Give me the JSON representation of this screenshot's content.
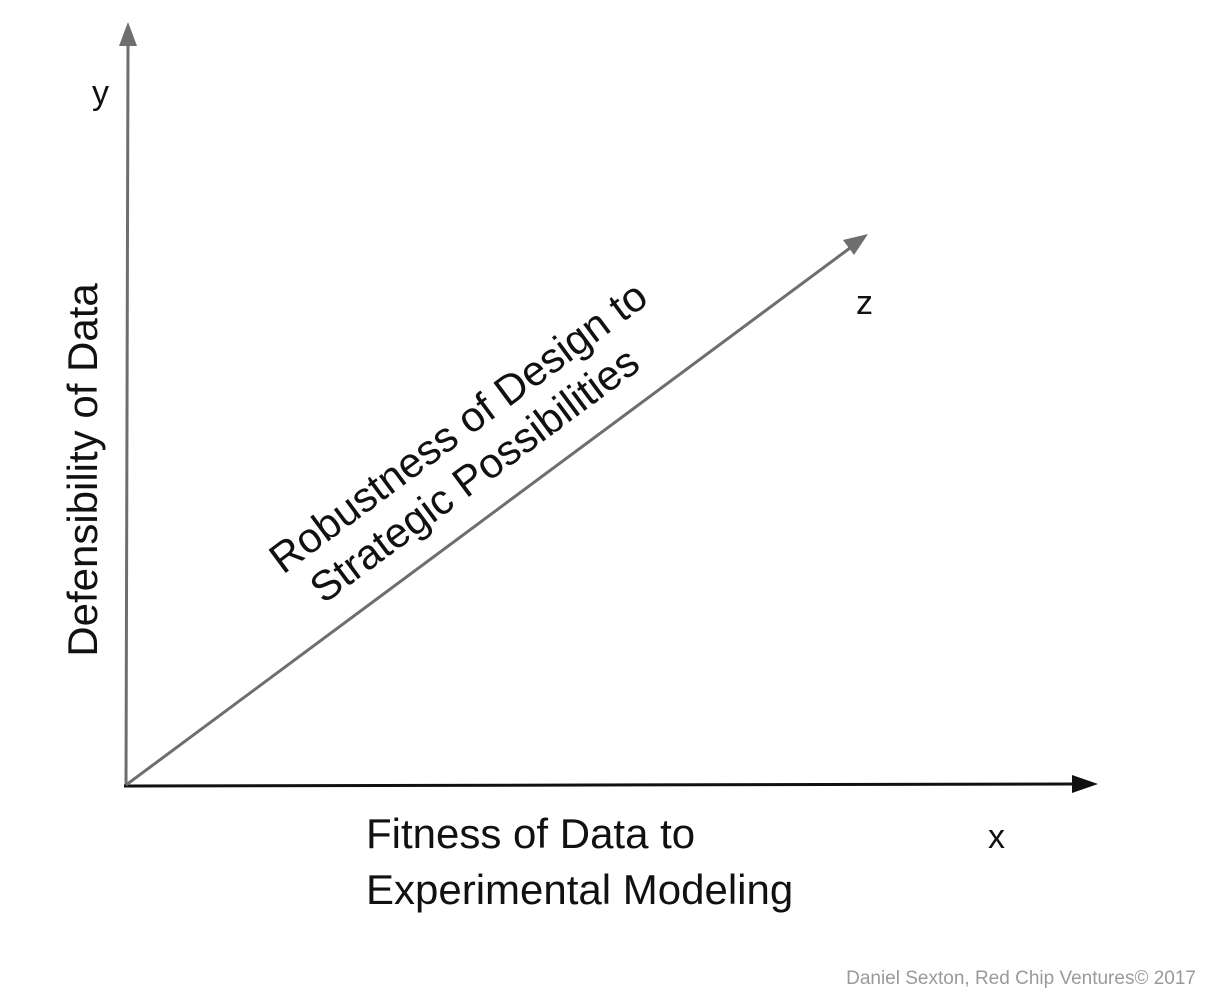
{
  "axes": {
    "x": {
      "letter": "x",
      "label_line1": "Fitness of Data to",
      "label_line2": "Experimental Modeling"
    },
    "y": {
      "letter": "y",
      "label": "Defensibility of Data"
    },
    "z": {
      "letter": "z",
      "label_line1": "Robustness of Design to",
      "label_line2": "Strategic Possibilities"
    }
  },
  "credit": "Daniel Sexton, Red Chip Ventures© 2017",
  "colors": {
    "x_axis": "#111111",
    "y_axis": "#6e6e6e",
    "z_axis": "#6e6e6e",
    "text": "#111111",
    "credit": "#9a9a9a"
  }
}
